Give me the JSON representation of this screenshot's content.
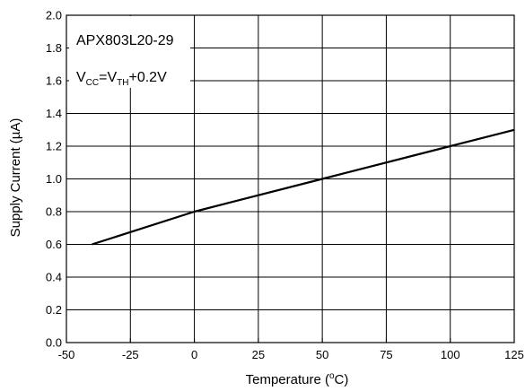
{
  "chart_data": {
    "type": "line",
    "title": "",
    "xlabel": "Temperature (",
    "xlabel_unit": "C)",
    "xlabel_degree": "o",
    "ylabel": "Supply Current (µA)",
    "xlim": [
      -50,
      125
    ],
    "ylim": [
      0.0,
      2.0
    ],
    "xticks": [
      "-50",
      "-25",
      "0",
      "25",
      "50",
      "75",
      "100",
      "125"
    ],
    "yticks": [
      "0.0",
      "0.2",
      "0.4",
      "0.6",
      "0.8",
      "1.0",
      "1.2",
      "1.4",
      "1.6",
      "1.8",
      "2.0"
    ],
    "grid": true,
    "series": [
      {
        "x": [
          -40,
          0,
          50,
          100,
          125
        ],
        "y": [
          0.6,
          0.8,
          1.0,
          1.2,
          1.3
        ]
      }
    ],
    "annotations": {
      "part": "APX803L20-29",
      "cond_v1": "V",
      "cond_sub1": "CC",
      "cond_eq": "=V",
      "cond_sub2": "TH",
      "cond_rest": "+0.2V"
    },
    "colors": {
      "line": "#000000",
      "grid": "#000000",
      "background": "#ffffff"
    }
  }
}
